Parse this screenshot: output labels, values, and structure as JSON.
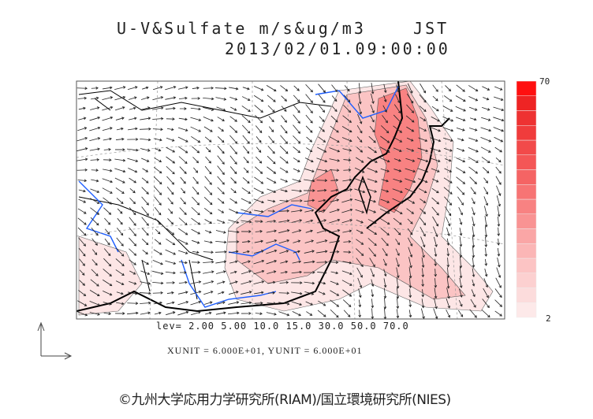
{
  "title": {
    "line1": "U-V&Sulfate m/s&ug/m3    JST",
    "line2": "2013/02/01.09:00:00"
  },
  "colorbar": {
    "max_label": "70",
    "min_label": "2",
    "colors": [
      "#fde9e9",
      "#fcdcdc",
      "#fcd0d0",
      "#fcc4c4",
      "#fbb6b6",
      "#faa6a6",
      "#f99393",
      "#f88282",
      "#f77474",
      "#f56464",
      "#f45656",
      "#f24a4a",
      "#f03c3c",
      "#ee3232",
      "#ee2424",
      "#ff1010"
    ]
  },
  "contour_levels": "lev= 2.00 5.00 10.0 15.0 30.0 50.0 70.0",
  "units": "XUNIT = 6.000E+01, YUNIT = 6.000E+01",
  "copyright": "©九州大学応用力学研究所(RIAM)/国立環境研究所(NIES)",
  "wind_field": {
    "prevailing": "northwesterly",
    "arrow_color": "#222222"
  },
  "colors": {
    "river": "#1e5eff",
    "coast": "#000000",
    "plume": "#f24a4a"
  }
}
